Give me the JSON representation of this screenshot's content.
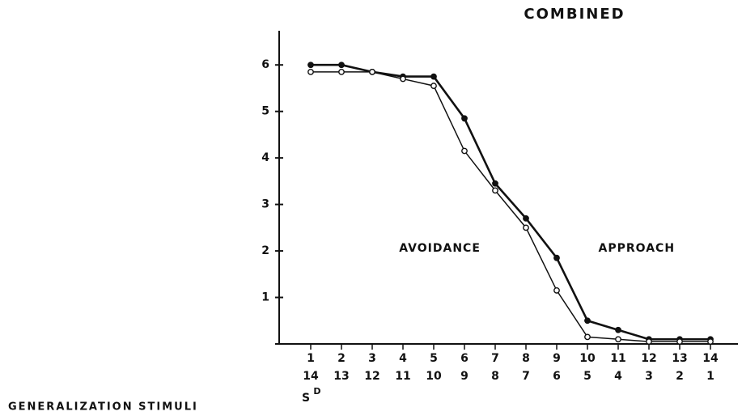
{
  "chart_data": {
    "type": "line",
    "title": "COMBINED",
    "xlabel": "GENERALIZATION STIMULI",
    "categories": [
      "1",
      "2",
      "3",
      "4",
      "5",
      "6",
      "7",
      "8",
      "9",
      "10",
      "11",
      "12",
      "13",
      "14"
    ],
    "categories_2": [
      "14",
      "13",
      "12",
      "11",
      "10",
      "9",
      "8",
      "7",
      "6",
      "5",
      "4",
      "3",
      "2",
      "1"
    ],
    "sd_label": {
      "base": "S",
      "sup": "D"
    },
    "annotations": [
      "AVOIDANCE",
      "APPROACH"
    ],
    "series": [
      {
        "color": "#111111",
        "marker": "filled",
        "values": [
          6.0,
          6.0,
          5.85,
          5.75,
          5.75,
          4.85,
          3.45,
          2.7,
          1.85,
          0.5,
          0.3,
          0.1,
          0.1,
          0.1
        ]
      },
      {
        "color": "#111111",
        "marker": "open",
        "values": [
          5.85,
          5.85,
          5.85,
          5.7,
          5.55,
          4.15,
          3.3,
          2.5,
          1.15,
          0.15,
          0.1,
          0.05,
          0.05,
          0.05
        ]
      }
    ],
    "ylim": [
      0,
      6.7
    ],
    "yticks": [
      1,
      2,
      3,
      4,
      5,
      6
    ]
  }
}
